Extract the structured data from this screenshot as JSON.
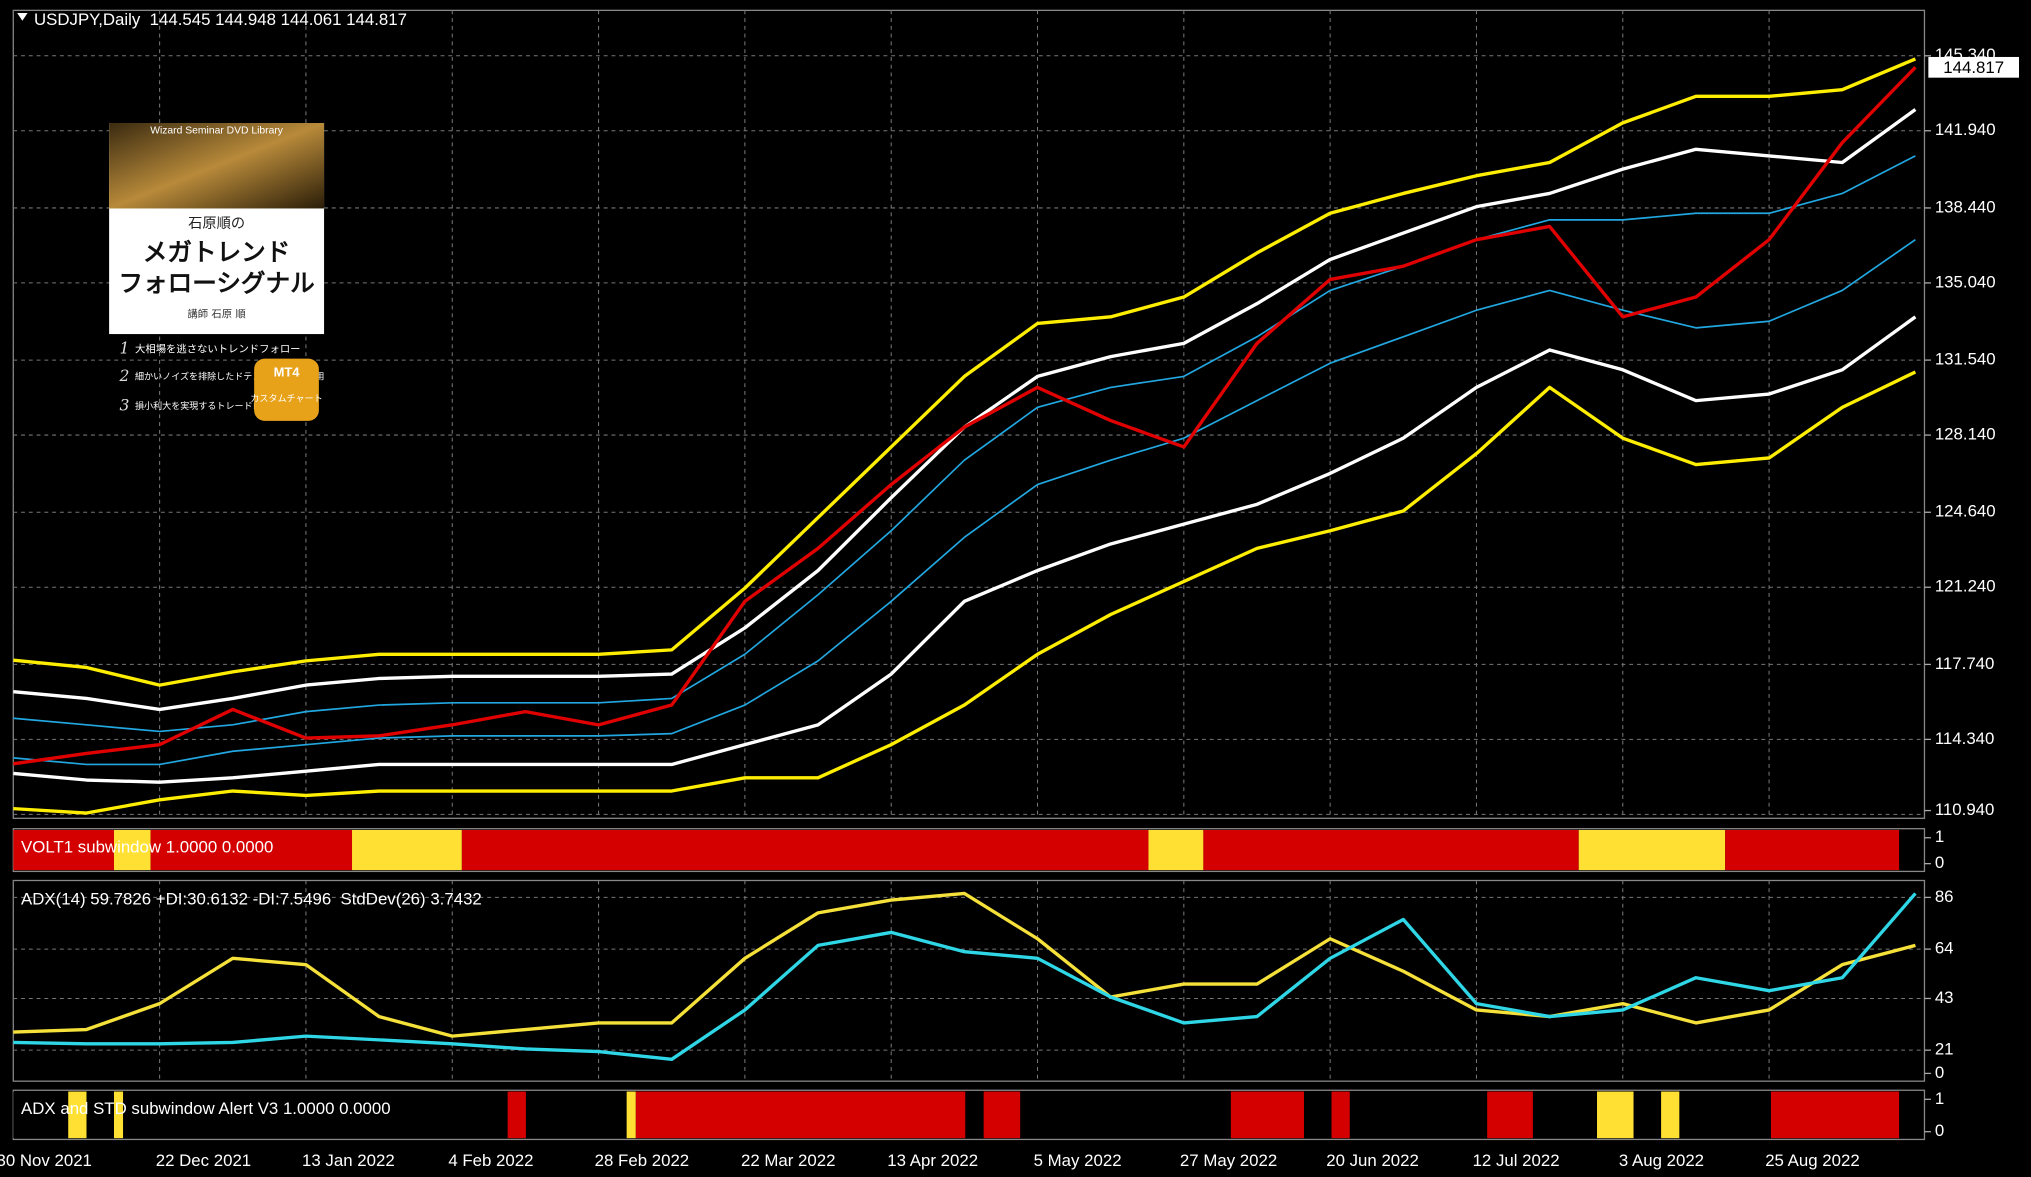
{
  "ad": {
    "series": "Wizard Seminar DVD Library",
    "author_title": "石原順の",
    "title_line1": "メガトレンド",
    "title_line2": "フォローシグナル",
    "lecturer": "講師 石原 順",
    "point_numbers": [
      1,
      2,
      3
    ],
    "points": [
      "大相場を逃さないトレンドフォロー",
      "細かいノイズを排除したドテンシステムを採用",
      "損小利大を実現するトレードロジック"
    ],
    "badge": [
      "MT4",
      "カスタムチャート"
    ]
  },
  "chart_data": [
    {
      "type": "line",
      "title": "USDJPY,Daily  144.545 144.948 144.061 144.817",
      "categories": [
        "30 Nov 2021",
        null,
        "22 Dec 2021",
        null,
        "13 Jan 2022",
        null,
        "4 Feb 2022",
        null,
        "28 Feb 2022",
        null,
        "22 Mar 2022",
        null,
        "13 Apr 2022",
        null,
        "5 May 2022",
        null,
        "27 May 2022",
        null,
        "20 Jun 2022",
        null,
        "12 Jul 2022",
        null,
        "3 Aug 2022",
        null,
        "25 Aug 2022",
        null,
        null
      ],
      "ylim": [
        110.76,
        147.4
      ],
      "yticks": [
        {
          "value": 110.94,
          "label": "110.940"
        },
        {
          "value": 114.34,
          "label": "114.340"
        },
        {
          "value": 117.74,
          "label": "117.740"
        },
        {
          "value": 121.24,
          "label": "121.240"
        },
        {
          "value": 124.64,
          "label": "124.640"
        },
        {
          "value": 128.14,
          "label": "128.140"
        },
        {
          "value": 131.54,
          "label": "131.540"
        },
        {
          "value": 135.04,
          "label": "135.040"
        },
        {
          "value": 138.44,
          "label": "138.440"
        },
        {
          "value": 141.94,
          "label": "141.940"
        },
        {
          "value": 145.34,
          "label": "145.340"
        }
      ],
      "grid": true,
      "price_label": {
        "value": 144.817,
        "label": "144.817"
      },
      "series": [
        {
          "color": "#ffee00",
          "values": [
            117.93,
            117.6,
            116.8,
            117.4,
            117.9,
            118.2,
            118.2,
            118.2,
            118.2,
            118.4,
            121.2,
            124.4,
            127.6,
            130.8,
            133.2,
            133.5,
            134.4,
            136.4,
            138.2,
            139.1,
            139.9,
            140.5,
            142.3,
            143.5,
            143.5,
            143.8,
            145.2
          ]
        },
        {
          "color": "#ffffff",
          "values": [
            116.5,
            116.2,
            115.7,
            116.2,
            116.8,
            117.1,
            117.2,
            117.2,
            117.2,
            117.3,
            119.4,
            122.0,
            125.3,
            128.5,
            130.8,
            131.7,
            132.3,
            134.1,
            136.1,
            137.3,
            138.5,
            139.1,
            140.2,
            141.1,
            140.8,
            140.5,
            142.9
          ]
        },
        {
          "color": "#22a7e0",
          "values": [
            115.3,
            115.0,
            114.7,
            115.0,
            115.6,
            115.9,
            116.0,
            116.0,
            116.0,
            116.2,
            118.2,
            120.9,
            123.8,
            127.0,
            129.4,
            130.3,
            130.8,
            132.6,
            134.7,
            135.8,
            137.0,
            137.9,
            137.9,
            138.2,
            138.2,
            139.1,
            140.8
          ]
        },
        {
          "color": "#22a7e0",
          "values": [
            113.5,
            113.2,
            113.2,
            113.8,
            114.1,
            114.4,
            114.5,
            114.5,
            114.5,
            114.6,
            115.9,
            117.9,
            120.6,
            123.5,
            125.9,
            127.0,
            128.0,
            129.7,
            131.4,
            132.6,
            133.8,
            134.7,
            133.8,
            133.0,
            133.3,
            134.7,
            137.0
          ]
        },
        {
          "color": "#ffffff",
          "values": [
            112.8,
            112.5,
            112.4,
            112.6,
            112.9,
            113.2,
            113.2,
            113.2,
            113.2,
            113.2,
            114.1,
            115.0,
            117.3,
            120.6,
            122.0,
            123.2,
            124.1,
            125.0,
            126.4,
            128.0,
            130.3,
            132.0,
            131.1,
            129.7,
            130.0,
            131.1,
            133.5
          ]
        },
        {
          "color": "#ffee00",
          "values": [
            111.2,
            111.0,
            111.6,
            112.0,
            111.8,
            112.0,
            112.0,
            112.0,
            112.0,
            112.0,
            112.6,
            112.6,
            114.1,
            115.9,
            118.2,
            120.0,
            121.5,
            123.0,
            123.8,
            124.7,
            127.3,
            130.3,
            128.0,
            126.8,
            127.1,
            129.4,
            131.0
          ]
        },
        {
          "color": "#e00000",
          "values": [
            113.23,
            113.7,
            114.1,
            115.7,
            114.4,
            114.5,
            115.0,
            115.6,
            115.0,
            115.9,
            120.6,
            123.0,
            125.9,
            128.5,
            130.3,
            128.8,
            127.6,
            132.3,
            135.2,
            135.8,
            137.0,
            137.6,
            133.5,
            134.4,
            137.0,
            141.4,
            144.817
          ]
        }
      ]
    },
    {
      "type": "timeline",
      "title": "VOLT1 subwindow 1.0000 0.0000",
      "ylim": [
        0,
        1
      ],
      "yticks": [
        1,
        0
      ],
      "segments": [
        {
          "value": 11,
          "color": "#d40000"
        },
        {
          "value": 4,
          "color": "#ffe033"
        },
        {
          "value": 22,
          "color": "#d40000"
        },
        {
          "value": 12,
          "color": "#ffe033"
        },
        {
          "value": 75,
          "color": "#d40000"
        },
        {
          "value": 6,
          "color": "#ffe033"
        },
        {
          "value": 41,
          "color": "#d40000"
        },
        {
          "value": 16,
          "color": "#ffe033"
        },
        {
          "value": 19,
          "color": "#d40000"
        }
      ]
    },
    {
      "type": "line",
      "title": "ADX(14) 59.7826 +DI:30.6132 -DI:7.5496  StdDev(26) 3.7432",
      "ylim": [
        7.8,
        93.2
      ],
      "yticks": [
        86,
        64,
        43,
        21,
        0
      ],
      "grid": true,
      "series": [
        {
          "color": "#f5e13a",
          "values": [
            28.7,
            29.8,
            40.8,
            60.1,
            57.4,
            35.3,
            27.0,
            29.8,
            32.6,
            32.6,
            60.1,
            79.4,
            84.9,
            87.7,
            68.4,
            43.6,
            49.1,
            49.1,
            68.4,
            54.6,
            38.1,
            35.3,
            40.8,
            32.6,
            38.1,
            57.4,
            65.6
          ]
        },
        {
          "color": "#2fd6e6",
          "values": [
            24.3,
            23.7,
            23.7,
            24.3,
            27.0,
            25.4,
            23.7,
            21.5,
            20.4,
            17.1,
            38.1,
            65.6,
            71.1,
            62.9,
            60.1,
            43.6,
            32.6,
            35.3,
            60.1,
            76.6,
            40.8,
            35.3,
            38.1,
            51.8,
            46.3,
            51.8,
            87.7
          ]
        }
      ]
    },
    {
      "type": "timeline",
      "title": "ADX and STD subwindow Alert V3 1.0000 0.0000",
      "ylim": [
        0,
        1
      ],
      "yticks": [
        1,
        0
      ],
      "segments": [
        {
          "value": 6,
          "color": "#000000"
        },
        {
          "value": 2,
          "color": "#ffe033"
        },
        {
          "value": 3,
          "color": "#000000"
        },
        {
          "value": 1,
          "color": "#ffe033"
        },
        {
          "value": 42,
          "color": "#000000"
        },
        {
          "value": 2,
          "color": "#d40000"
        },
        {
          "value": 11,
          "color": "#000000"
        },
        {
          "value": 1,
          "color": "#ffe033"
        },
        {
          "value": 36,
          "color": "#d40000"
        },
        {
          "value": 2,
          "color": "#000000"
        },
        {
          "value": 4,
          "color": "#d40000"
        },
        {
          "value": 23,
          "color": "#000000"
        },
        {
          "value": 8,
          "color": "#d40000"
        },
        {
          "value": 3,
          "color": "#000000"
        },
        {
          "value": 2,
          "color": "#d40000"
        },
        {
          "value": 15,
          "color": "#000000"
        },
        {
          "value": 5,
          "color": "#d40000"
        },
        {
          "value": 7,
          "color": "#000000"
        },
        {
          "value": 4,
          "color": "#ffe033"
        },
        {
          "value": 3,
          "color": "#000000"
        },
        {
          "value": 2,
          "color": "#ffe033"
        },
        {
          "value": 10,
          "color": "#000000"
        },
        {
          "value": 14,
          "color": "#d40000"
        }
      ]
    }
  ]
}
